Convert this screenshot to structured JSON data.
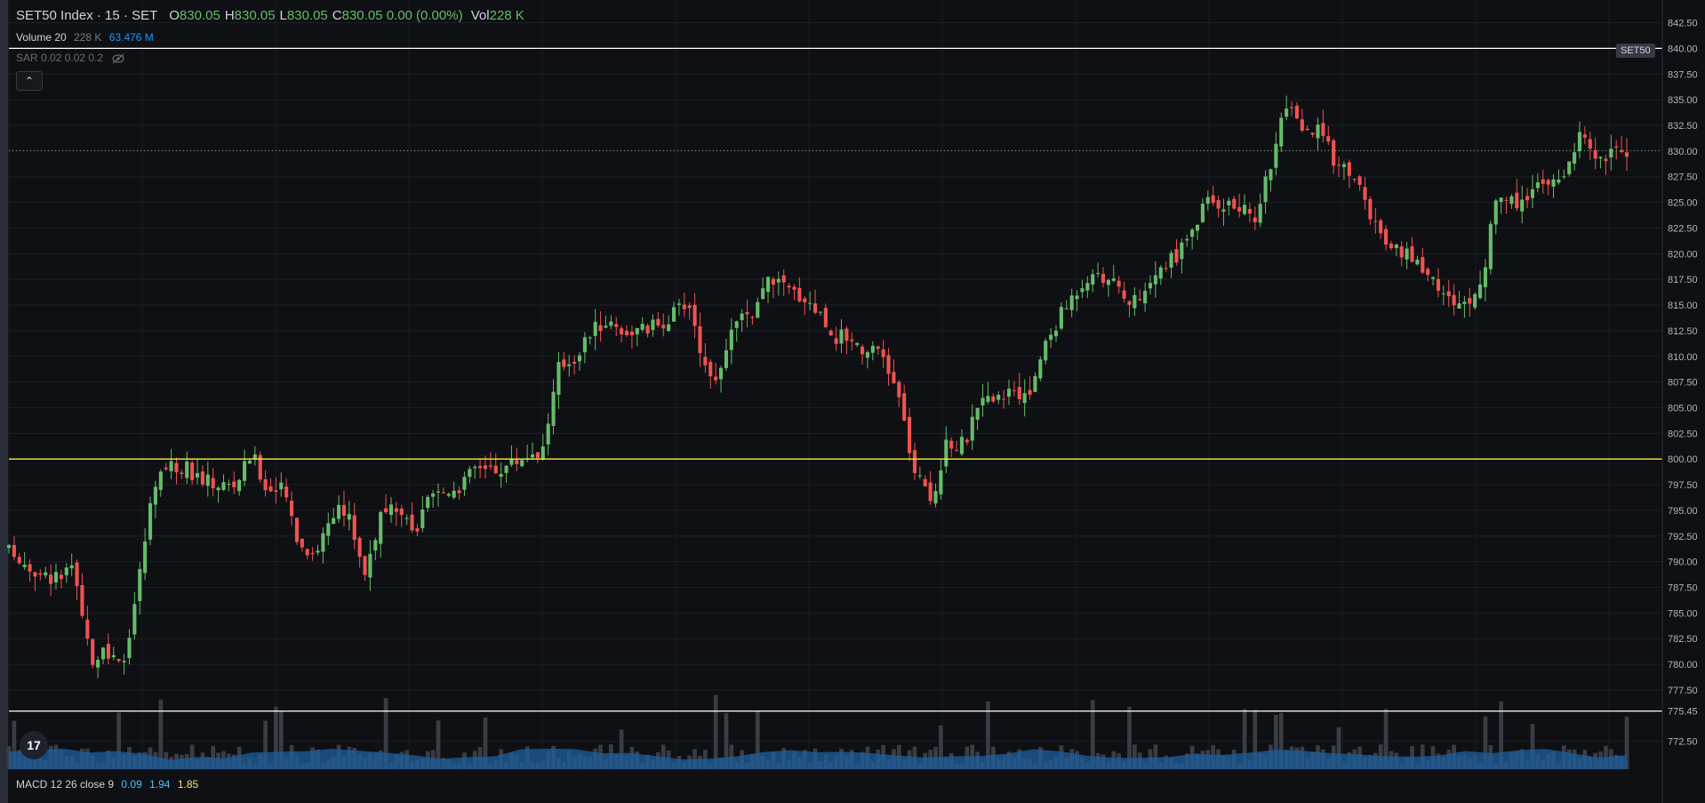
{
  "header": {
    "symbol_title": "SET50 Index · 15 · SET",
    "ohlc": {
      "open_label": "O",
      "open": "830.05",
      "high_label": "H",
      "high": "830.05",
      "low_label": "L",
      "low": "830.05",
      "close_label": "C",
      "close": "830.05",
      "change": "0.00 (0.00%)",
      "vol_label": "Vol",
      "vol": "228 K"
    },
    "volume_indicator": {
      "name": "Volume 20",
      "value": "228 K",
      "ma": "63.476 M"
    },
    "sar_indicator": {
      "name": "SAR 0.02 0.02 0.2"
    },
    "collapse_glyph": "⌃"
  },
  "symbol_tag": "SET50",
  "current_price_label": "830.05",
  "horizontal_lines": [
    {
      "price_label": "840.00",
      "color": "#ffffff"
    },
    {
      "price_label": "800.00",
      "color": "#ffeb3b"
    },
    {
      "price_label": "775.45",
      "color": "#ffffff"
    }
  ],
  "macd": {
    "name": "MACD 12 26 close 9",
    "macd": "0.09",
    "signal": "1.94",
    "hist": "1.85"
  },
  "logo": "17",
  "colors": {
    "up": "#26a69a",
    "up_body": "#66bb6a",
    "down": "#ef5350",
    "volume": "#2962ff",
    "volume_band": "#1e5f9e"
  },
  "chart_data": {
    "type": "candlestick",
    "y_ticks": [
      "842.50",
      "840.00",
      "837.50",
      "835.00",
      "832.50",
      "830.00",
      "827.50",
      "825.00",
      "822.50",
      "820.00",
      "817.50",
      "815.00",
      "812.50",
      "810.00",
      "807.50",
      "805.00",
      "802.50",
      "800.00",
      "797.50",
      "795.00",
      "792.50",
      "790.00",
      "787.50",
      "785.00",
      "782.50",
      "780.00",
      "777.50",
      "775.45",
      "772.50"
    ],
    "ylim": [
      771.0,
      843.5
    ],
    "close_path": [
      {
        "x": 0.0,
        "y": 791.0
      },
      {
        "x": 0.01,
        "y": 790.0
      },
      {
        "x": 0.02,
        "y": 788.5
      },
      {
        "x": 0.03,
        "y": 788.5
      },
      {
        "x": 0.04,
        "y": 789.0
      },
      {
        "x": 0.05,
        "y": 780.5
      },
      {
        "x": 0.06,
        "y": 781.0
      },
      {
        "x": 0.07,
        "y": 779.5
      },
      {
        "x": 0.08,
        "y": 788.0
      },
      {
        "x": 0.09,
        "y": 798.0
      },
      {
        "x": 0.1,
        "y": 799.5
      },
      {
        "x": 0.11,
        "y": 799.0
      },
      {
        "x": 0.12,
        "y": 798.0
      },
      {
        "x": 0.13,
        "y": 797.5
      },
      {
        "x": 0.14,
        "y": 797.5
      },
      {
        "x": 0.15,
        "y": 800.5
      },
      {
        "x": 0.16,
        "y": 797.0
      },
      {
        "x": 0.17,
        "y": 797.0
      },
      {
        "x": 0.18,
        "y": 791.5
      },
      {
        "x": 0.19,
        "y": 791.0
      },
      {
        "x": 0.2,
        "y": 795.0
      },
      {
        "x": 0.21,
        "y": 794.5
      },
      {
        "x": 0.22,
        "y": 789.0
      },
      {
        "x": 0.23,
        "y": 794.5
      },
      {
        "x": 0.24,
        "y": 795.0
      },
      {
        "x": 0.25,
        "y": 792.5
      },
      {
        "x": 0.26,
        "y": 796.0
      },
      {
        "x": 0.27,
        "y": 797.0
      },
      {
        "x": 0.28,
        "y": 797.5
      },
      {
        "x": 0.29,
        "y": 799.5
      },
      {
        "x": 0.3,
        "y": 799.0
      },
      {
        "x": 0.31,
        "y": 799.5
      },
      {
        "x": 0.32,
        "y": 800.5
      },
      {
        "x": 0.33,
        "y": 801.0
      },
      {
        "x": 0.34,
        "y": 809.0
      },
      {
        "x": 0.35,
        "y": 810.0
      },
      {
        "x": 0.36,
        "y": 812.5
      },
      {
        "x": 0.37,
        "y": 813.5
      },
      {
        "x": 0.38,
        "y": 812.5
      },
      {
        "x": 0.39,
        "y": 812.5
      },
      {
        "x": 0.4,
        "y": 813.0
      },
      {
        "x": 0.41,
        "y": 814.0
      },
      {
        "x": 0.42,
        "y": 815.5
      },
      {
        "x": 0.43,
        "y": 809.0
      },
      {
        "x": 0.44,
        "y": 808.0
      },
      {
        "x": 0.45,
        "y": 814.0
      },
      {
        "x": 0.46,
        "y": 813.5
      },
      {
        "x": 0.47,
        "y": 818.0
      },
      {
        "x": 0.48,
        "y": 816.5
      },
      {
        "x": 0.49,
        "y": 816.0
      },
      {
        "x": 0.5,
        "y": 814.5
      },
      {
        "x": 0.51,
        "y": 812.0
      },
      {
        "x": 0.52,
        "y": 812.0
      },
      {
        "x": 0.53,
        "y": 810.5
      },
      {
        "x": 0.54,
        "y": 810.0
      },
      {
        "x": 0.55,
        "y": 806.0
      },
      {
        "x": 0.56,
        "y": 798.5
      },
      {
        "x": 0.57,
        "y": 796.0
      },
      {
        "x": 0.58,
        "y": 801.5
      },
      {
        "x": 0.59,
        "y": 801.5
      },
      {
        "x": 0.6,
        "y": 805.0
      },
      {
        "x": 0.61,
        "y": 806.5
      },
      {
        "x": 0.62,
        "y": 806.0
      },
      {
        "x": 0.63,
        "y": 806.0
      },
      {
        "x": 0.64,
        "y": 811.0
      },
      {
        "x": 0.65,
        "y": 814.0
      },
      {
        "x": 0.66,
        "y": 816.5
      },
      {
        "x": 0.67,
        "y": 818.5
      },
      {
        "x": 0.68,
        "y": 817.5
      },
      {
        "x": 0.69,
        "y": 815.5
      },
      {
        "x": 0.7,
        "y": 815.0
      },
      {
        "x": 0.71,
        "y": 818.5
      },
      {
        "x": 0.72,
        "y": 819.5
      },
      {
        "x": 0.73,
        "y": 822.0
      },
      {
        "x": 0.74,
        "y": 825.0
      },
      {
        "x": 0.75,
        "y": 825.0
      },
      {
        "x": 0.76,
        "y": 824.5
      },
      {
        "x": 0.77,
        "y": 823.5
      },
      {
        "x": 0.78,
        "y": 829.0
      },
      {
        "x": 0.79,
        "y": 834.5
      },
      {
        "x": 0.8,
        "y": 831.5
      },
      {
        "x": 0.81,
        "y": 832.0
      },
      {
        "x": 0.82,
        "y": 829.0
      },
      {
        "x": 0.83,
        "y": 828.0
      },
      {
        "x": 0.84,
        "y": 824.5
      },
      {
        "x": 0.85,
        "y": 820.5
      },
      {
        "x": 0.86,
        "y": 820.0
      },
      {
        "x": 0.87,
        "y": 819.5
      },
      {
        "x": 0.88,
        "y": 817.5
      },
      {
        "x": 0.89,
        "y": 815.5
      },
      {
        "x": 0.9,
        "y": 815.0
      },
      {
        "x": 0.91,
        "y": 817.0
      },
      {
        "x": 0.92,
        "y": 826.0
      },
      {
        "x": 0.93,
        "y": 825.0
      },
      {
        "x": 0.94,
        "y": 826.0
      },
      {
        "x": 0.95,
        "y": 826.5
      },
      {
        "x": 0.96,
        "y": 827.5
      },
      {
        "x": 0.97,
        "y": 831.5
      },
      {
        "x": 0.98,
        "y": 829.5
      },
      {
        "x": 1.0,
        "y": 830.05
      }
    ],
    "xlabel": "",
    "ylabel": "",
    "grid": true
  }
}
